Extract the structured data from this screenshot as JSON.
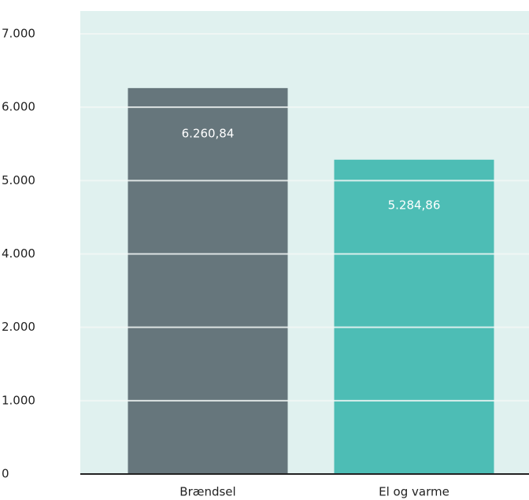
{
  "chart_data": {
    "type": "bar",
    "categories": [
      "Brændsel",
      "El og varme"
    ],
    "values": [
      6260.84,
      5284.86
    ],
    "value_labels": [
      "6.260,84",
      "5.284,86"
    ],
    "colors": [
      "#66767c",
      "#4dbdb5"
    ],
    "ylim": [
      0,
      7000
    ],
    "yticks": [
      0,
      {
        "value": 1000,
        "label": "1.000"
      },
      {
        "value": 2000,
        "label": "2.000"
      },
      {
        "value": 4000,
        "label": "4.000"
      },
      {
        "value": 5000,
        "label": "5.000"
      },
      {
        "value": 6000,
        "label": "6.000"
      },
      {
        "value": 7000,
        "label": "7.000"
      }
    ],
    "grid": true
  }
}
